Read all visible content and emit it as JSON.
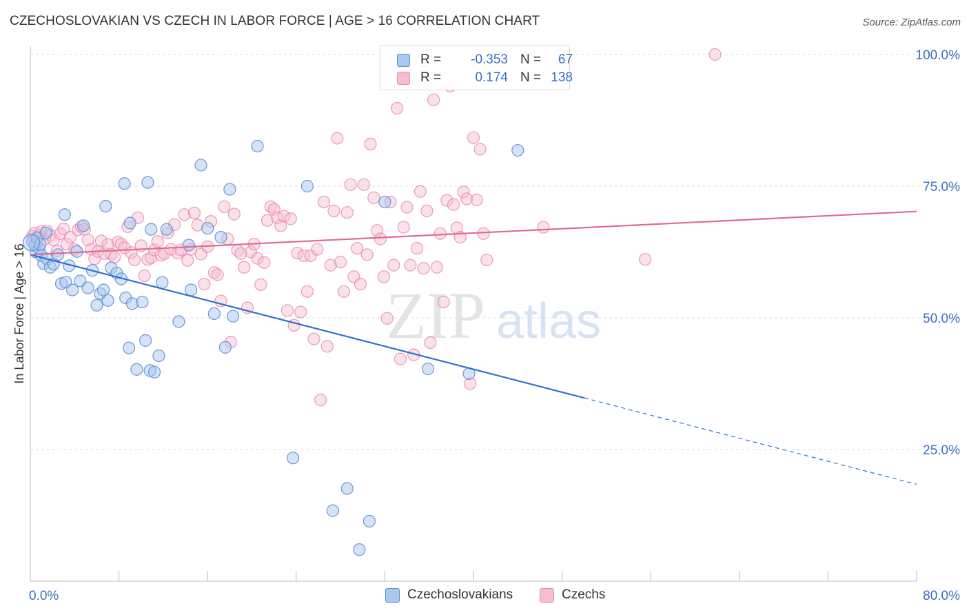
{
  "title": "CZECHOSLOVAKIAN VS CZECH IN LABOR FORCE | AGE > 16 CORRELATION CHART",
  "source": "Source: ZipAtlas.com",
  "watermark": {
    "zip": "ZIP",
    "atlas": "atlas"
  },
  "legend": {
    "rows": [
      {
        "r_label": "R =",
        "r_value": "-0.353",
        "n_label": "N =",
        "n_value": "67"
      },
      {
        "r_label": "R =",
        "r_value": "0.174",
        "n_label": "N =",
        "n_value": "138"
      }
    ]
  },
  "colors": {
    "blue_fill": "#aac8ef",
    "blue_stroke": "#5b8fd6",
    "blue_line": "#2f6fcf",
    "pink_fill": "#f6bcd0",
    "pink_stroke": "#e88aac",
    "pink_line": "#e06a96",
    "axis_label": "#3a6fc4",
    "grid": "#dddddd"
  },
  "chart_data": {
    "type": "scatter",
    "title": "CZECHOSLOVAKIAN VS CZECH IN LABOR FORCE | AGE > 16 CORRELATION CHART",
    "xlabel": "",
    "ylabel": "In Labor Force | Age > 16",
    "xlim": [
      0,
      80
    ],
    "ylim": [
      0,
      100
    ],
    "x_tick_labels": [
      "0.0%",
      "80.0%"
    ],
    "y_ticks": [
      25,
      50,
      75,
      100
    ],
    "y_tick_labels": [
      "25.0%",
      "50.0%",
      "75.0%",
      "100.0%"
    ],
    "grid": true,
    "legend_position": "top-center",
    "series": [
      {
        "name": "Czechoslovakians",
        "r": -0.353,
        "n": 67,
        "trend": {
          "x": [
            0,
            50
          ],
          "y": [
            62,
            34.8
          ],
          "dashed_to": [
            80,
            18.4
          ]
        },
        "points": [
          [
            0.2,
            64.5
          ],
          [
            0.4,
            63.8
          ],
          [
            0.5,
            62.5
          ],
          [
            0.6,
            65.2
          ],
          [
            0.8,
            63.1
          ],
          [
            1.0,
            61.8
          ],
          [
            1.2,
            60.3
          ],
          [
            1.5,
            61.2
          ],
          [
            1.8,
            59.6
          ],
          [
            2.1,
            60.2
          ],
          [
            2.5,
            62.0
          ],
          [
            2.8,
            56.5
          ],
          [
            3.1,
            69.6
          ],
          [
            3.2,
            56.8
          ],
          [
            3.5,
            59.9
          ],
          [
            3.8,
            55.3
          ],
          [
            4.2,
            62.6
          ],
          [
            4.5,
            57.0
          ],
          [
            4.8,
            67.5
          ],
          [
            5.2,
            55.7
          ],
          [
            5.6,
            59.0
          ],
          [
            6.0,
            52.4
          ],
          [
            6.3,
            54.6
          ],
          [
            6.6,
            55.3
          ],
          [
            7.0,
            53.3
          ],
          [
            7.3,
            59.5
          ],
          [
            7.8,
            58.5
          ],
          [
            8.2,
            57.4
          ],
          [
            8.6,
            53.8
          ],
          [
            8.9,
            44.3
          ],
          [
            9.2,
            52.7
          ],
          [
            9.6,
            40.2
          ],
          [
            10.1,
            53.0
          ],
          [
            10.4,
            45.7
          ],
          [
            10.8,
            40.0
          ],
          [
            11.2,
            39.7
          ],
          [
            11.6,
            42.8
          ],
          [
            11.9,
            56.7
          ],
          [
            6.8,
            71.2
          ],
          [
            8.5,
            75.5
          ],
          [
            10.6,
            75.7
          ],
          [
            9.0,
            68.0
          ],
          [
            10.9,
            66.8
          ],
          [
            12.3,
            66.8
          ],
          [
            13.4,
            49.3
          ],
          [
            14.3,
            63.8
          ],
          [
            14.5,
            55.3
          ],
          [
            15.4,
            79.0
          ],
          [
            16.0,
            67.0
          ],
          [
            16.6,
            50.8
          ],
          [
            17.2,
            65.3
          ],
          [
            17.6,
            44.4
          ],
          [
            18.0,
            74.4
          ],
          [
            18.3,
            50.3
          ],
          [
            20.5,
            82.6
          ],
          [
            23.7,
            23.4
          ],
          [
            25.0,
            75.0
          ],
          [
            27.3,
            13.4
          ],
          [
            28.6,
            17.6
          ],
          [
            29.7,
            6.0
          ],
          [
            30.6,
            11.4
          ],
          [
            32.0,
            72.0
          ],
          [
            35.9,
            40.3
          ],
          [
            39.6,
            39.4
          ],
          [
            44.0,
            81.8
          ],
          [
            0.9,
            64.0
          ],
          [
            1.4,
            66.1
          ]
        ]
      },
      {
        "name": "Czechs",
        "r": 0.174,
        "n": 138,
        "trend": {
          "x": [
            0,
            80
          ],
          "y": [
            62,
            70.2
          ]
        },
        "points": [
          [
            0.2,
            65.5
          ],
          [
            0.4,
            66.1
          ],
          [
            0.6,
            64.3
          ],
          [
            0.8,
            65.6
          ],
          [
            1.0,
            66.4
          ],
          [
            1.3,
            64.9
          ],
          [
            1.5,
            66.5
          ],
          [
            1.8,
            65.7
          ],
          [
            2.1,
            64.8
          ],
          [
            2.4,
            62.7
          ],
          [
            2.7,
            66.0
          ],
          [
            3.0,
            66.9
          ],
          [
            3.3,
            64.0
          ],
          [
            3.6,
            65.3
          ],
          [
            4.0,
            63.0
          ],
          [
            4.3,
            66.7
          ],
          [
            4.6,
            67.3
          ],
          [
            4.9,
            66.8
          ],
          [
            5.2,
            64.8
          ],
          [
            5.5,
            63.0
          ],
          [
            5.8,
            61.2
          ],
          [
            6.1,
            62.6
          ],
          [
            6.4,
            64.6
          ],
          [
            6.7,
            62.2
          ],
          [
            7.0,
            63.9
          ],
          [
            7.3,
            62.1
          ],
          [
            7.6,
            61.5
          ],
          [
            7.9,
            64.4
          ],
          [
            8.2,
            64.0
          ],
          [
            8.5,
            63.3
          ],
          [
            8.8,
            67.3
          ],
          [
            9.1,
            62.4
          ],
          [
            9.4,
            61.0
          ],
          [
            9.7,
            69.0
          ],
          [
            10.0,
            63.7
          ],
          [
            10.3,
            58.0
          ],
          [
            10.6,
            61.1
          ],
          [
            10.9,
            61.4
          ],
          [
            11.2,
            62.9
          ],
          [
            11.5,
            64.5
          ],
          [
            11.8,
            61.9
          ],
          [
            12.1,
            62.2
          ],
          [
            12.4,
            66.1
          ],
          [
            12.7,
            63.0
          ],
          [
            13.0,
            67.7
          ],
          [
            13.3,
            62.3
          ],
          [
            13.6,
            62.9
          ],
          [
            13.9,
            69.6
          ],
          [
            14.2,
            60.9
          ],
          [
            14.5,
            63.0
          ],
          [
            14.8,
            69.9
          ],
          [
            15.1,
            67.6
          ],
          [
            15.4,
            62.1
          ],
          [
            15.7,
            56.4
          ],
          [
            16.0,
            63.5
          ],
          [
            16.3,
            68.3
          ],
          [
            16.6,
            58.6
          ],
          [
            16.9,
            58.2
          ],
          [
            17.2,
            53.2
          ],
          [
            17.5,
            71.1
          ],
          [
            17.8,
            65.0
          ],
          [
            18.1,
            45.4
          ],
          [
            18.4,
            69.7
          ],
          [
            18.7,
            62.8
          ],
          [
            19.0,
            62.2
          ],
          [
            19.3,
            59.6
          ],
          [
            19.6,
            51.9
          ],
          [
            19.9,
            62.5
          ],
          [
            20.2,
            64.0
          ],
          [
            20.5,
            61.3
          ],
          [
            20.8,
            56.3
          ],
          [
            21.1,
            60.5
          ],
          [
            21.4,
            68.5
          ],
          [
            21.7,
            71.1
          ],
          [
            22.0,
            70.6
          ],
          [
            22.3,
            69.0
          ],
          [
            22.6,
            67.5
          ],
          [
            22.9,
            69.3
          ],
          [
            23.2,
            51.4
          ],
          [
            23.5,
            68.8
          ],
          [
            23.8,
            48.6
          ],
          [
            24.1,
            62.3
          ],
          [
            24.4,
            51.1
          ],
          [
            24.7,
            61.8
          ],
          [
            25.0,
            55.0
          ],
          [
            25.3,
            61.8
          ],
          [
            25.6,
            46.0
          ],
          [
            25.9,
            63.0
          ],
          [
            26.2,
            34.4
          ],
          [
            26.5,
            72.0
          ],
          [
            26.8,
            44.6
          ],
          [
            27.1,
            60.0
          ],
          [
            27.4,
            70.3
          ],
          [
            27.7,
            84.1
          ],
          [
            28.0,
            60.6
          ],
          [
            28.3,
            55.0
          ],
          [
            28.6,
            70.0
          ],
          [
            28.9,
            75.3
          ],
          [
            29.2,
            57.8
          ],
          [
            29.5,
            63.2
          ],
          [
            29.8,
            56.4
          ],
          [
            30.1,
            75.3
          ],
          [
            30.4,
            62.0
          ],
          [
            30.7,
            83.0
          ],
          [
            31.0,
            72.8
          ],
          [
            31.3,
            66.6
          ],
          [
            31.6,
            65.0
          ],
          [
            31.9,
            57.8
          ],
          [
            32.2,
            49.9
          ],
          [
            32.5,
            72.0
          ],
          [
            32.8,
            60.0
          ],
          [
            33.1,
            89.8
          ],
          [
            33.4,
            42.2
          ],
          [
            33.7,
            67.2
          ],
          [
            34.0,
            71.0
          ],
          [
            34.3,
            60.0
          ],
          [
            34.6,
            43.0
          ],
          [
            34.9,
            63.2
          ],
          [
            35.2,
            74.0
          ],
          [
            35.5,
            59.4
          ],
          [
            35.8,
            70.3
          ],
          [
            36.1,
            45.3
          ],
          [
            36.4,
            91.4
          ],
          [
            36.7,
            59.6
          ],
          [
            37.0,
            66.0
          ],
          [
            37.3,
            53.0
          ],
          [
            37.6,
            72.3
          ],
          [
            37.9,
            94.0
          ],
          [
            38.2,
            71.5
          ],
          [
            38.5,
            67.1
          ],
          [
            38.8,
            65.3
          ],
          [
            39.1,
            73.9
          ],
          [
            39.4,
            72.6
          ],
          [
            39.7,
            37.5
          ],
          [
            40.0,
            84.2
          ],
          [
            40.3,
            72.4
          ],
          [
            40.6,
            82.0
          ],
          [
            40.9,
            66.0
          ],
          [
            41.2,
            61.0
          ],
          [
            46.3,
            67.2
          ],
          [
            61.8,
            100.0
          ],
          [
            55.5,
            61.1
          ]
        ]
      }
    ]
  },
  "bottom_legend": [
    "Czechoslovakians",
    "Czechs"
  ]
}
